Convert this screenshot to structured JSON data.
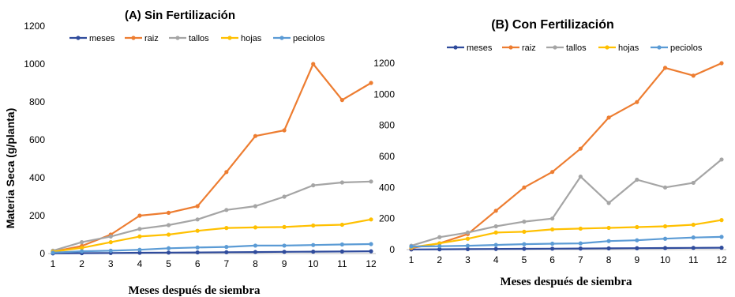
{
  "chart_data": [
    {
      "type": "line",
      "title": "(A) Sin Fertilización",
      "xlabel": "Meses después de siembra",
      "ylabel": "Materia Seca (g/planta)",
      "x": [
        1,
        2,
        3,
        4,
        5,
        6,
        7,
        8,
        9,
        10,
        11,
        12
      ],
      "ylim": [
        0,
        1200
      ],
      "yticks": [
        0,
        200,
        400,
        600,
        800,
        1000,
        1200
      ],
      "grid": false,
      "legend": "top",
      "series": [
        {
          "name": "meses",
          "color": "#2f4b9c",
          "values": [
            1,
            2,
            3,
            4,
            5,
            6,
            7,
            8,
            9,
            10,
            11,
            12
          ]
        },
        {
          "name": "raiz",
          "color": "#ed7d31",
          "values": [
            10,
            40,
            100,
            200,
            215,
            250,
            430,
            620,
            650,
            1000,
            810,
            900
          ]
        },
        {
          "name": "tallos",
          "color": "#a5a5a5",
          "values": [
            15,
            60,
            90,
            130,
            150,
            180,
            230,
            250,
            300,
            360,
            375,
            380
          ]
        },
        {
          "name": "hojas",
          "color": "#ffc000",
          "values": [
            10,
            30,
            60,
            90,
            100,
            120,
            135,
            138,
            140,
            148,
            152,
            180
          ]
        },
        {
          "name": "peciolos",
          "color": "#5b9bd5",
          "values": [
            5,
            12,
            15,
            20,
            28,
            32,
            35,
            42,
            42,
            45,
            48,
            50
          ]
        }
      ]
    },
    {
      "type": "line",
      "title": "(B) Con Fertilización",
      "xlabel": "Meses después de siembra",
      "ylabel": "",
      "x": [
        1,
        2,
        3,
        4,
        5,
        6,
        7,
        8,
        9,
        10,
        11,
        12
      ],
      "ylim": [
        0,
        1200
      ],
      "yticks": [
        0,
        200,
        400,
        600,
        800,
        1000,
        1200
      ],
      "grid": false,
      "legend": "top",
      "series": [
        {
          "name": "meses",
          "color": "#2f4b9c",
          "values": [
            1,
            2,
            3,
            4,
            5,
            6,
            7,
            8,
            9,
            10,
            11,
            12
          ]
        },
        {
          "name": "raiz",
          "color": "#ed7d31",
          "values": [
            10,
            40,
            100,
            250,
            400,
            500,
            650,
            850,
            950,
            1170,
            1120,
            1200
          ]
        },
        {
          "name": "tallos",
          "color": "#a5a5a5",
          "values": [
            25,
            80,
            110,
            150,
            180,
            200,
            470,
            300,
            450,
            400,
            430,
            580
          ]
        },
        {
          "name": "hojas",
          "color": "#ffc000",
          "values": [
            15,
            40,
            70,
            110,
            115,
            130,
            135,
            140,
            145,
            150,
            160,
            190
          ]
        },
        {
          "name": "peciolos",
          "color": "#5b9bd5",
          "values": [
            20,
            22,
            25,
            30,
            35,
            38,
            40,
            55,
            60,
            70,
            78,
            82
          ]
        }
      ]
    }
  ]
}
